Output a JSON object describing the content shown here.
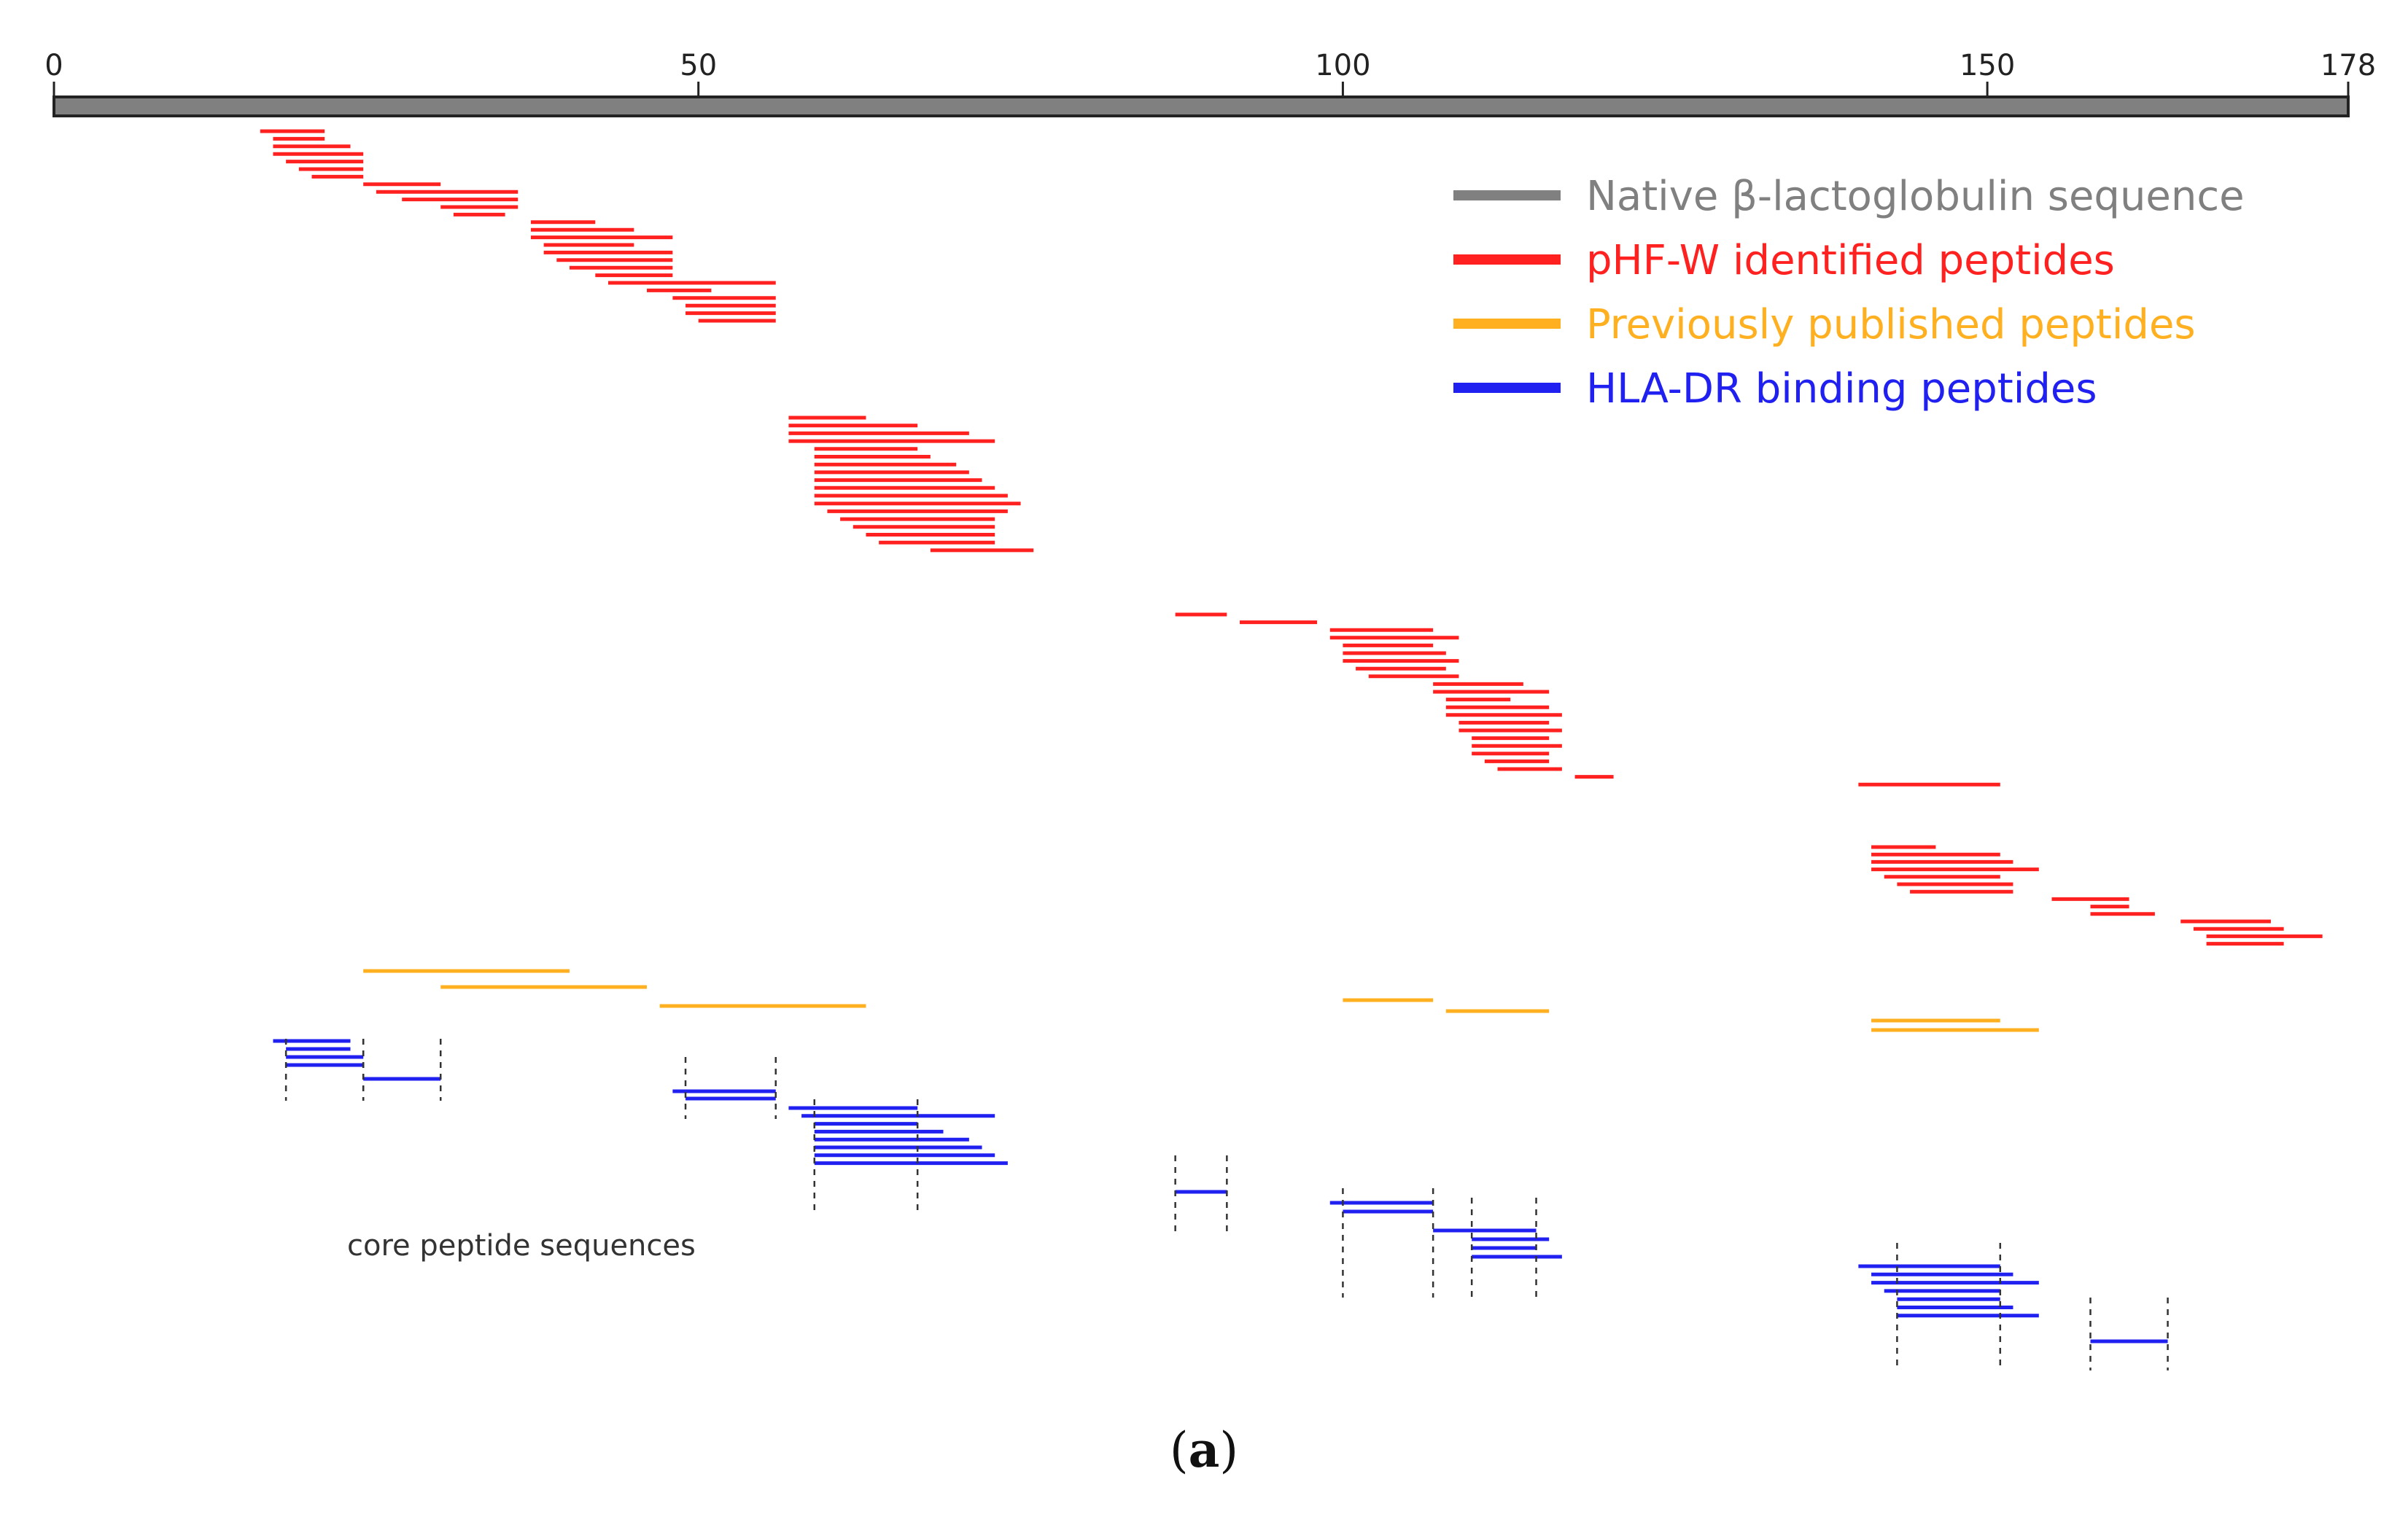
{
  "chart_data": {
    "type": "peptide_coverage_map",
    "title": "",
    "panel_label": {
      "open": "(",
      "letter": "a",
      "close": ")"
    },
    "sequence_length": 178,
    "x_range": [
      0,
      178
    ],
    "x_ticks": [
      0,
      50,
      100,
      150,
      178
    ],
    "note": "core peptide sequences",
    "colors": {
      "native": "#808080",
      "phf": "#ff2020",
      "published": "#ffb020",
      "hla": "#2020f0"
    },
    "legend": [
      {
        "label": "Native β-lactoglobulin sequence",
        "color": "#808080"
      },
      {
        "label": "pHF-W identified peptides",
        "color": "#ff2020"
      },
      {
        "label": "Previously published peptides",
        "color": "#ffb020"
      },
      {
        "label": "HLA-DR binding peptides",
        "color": "#2020f0"
      }
    ],
    "series": [
      {
        "name": "pHF-W identified peptides",
        "color": "#ff2020",
        "peptides": [
          [
            16,
            21
          ],
          [
            17,
            21
          ],
          [
            17,
            23
          ],
          [
            17,
            24
          ],
          [
            18,
            24
          ],
          [
            19,
            24
          ],
          [
            20,
            24
          ],
          [
            24,
            30
          ],
          [
            25,
            36
          ],
          [
            27,
            36
          ],
          [
            30,
            36
          ],
          [
            31,
            35
          ],
          [
            37,
            42
          ],
          [
            37,
            45
          ],
          [
            37,
            48
          ],
          [
            38,
            45
          ],
          [
            38,
            48
          ],
          [
            39,
            48
          ],
          [
            40,
            48
          ],
          [
            42,
            48
          ],
          [
            43,
            56
          ],
          [
            46,
            51
          ],
          [
            48,
            56
          ],
          [
            49,
            56
          ],
          [
            49,
            56
          ],
          [
            50,
            56
          ],
          [
            57,
            63
          ],
          [
            57,
            67
          ],
          [
            57,
            71
          ],
          [
            57,
            73
          ],
          [
            59,
            67
          ],
          [
            59,
            68
          ],
          [
            59,
            70
          ],
          [
            59,
            71
          ],
          [
            59,
            72
          ],
          [
            59,
            73
          ],
          [
            59,
            74
          ],
          [
            59,
            75
          ],
          [
            60,
            74
          ],
          [
            61,
            73
          ],
          [
            62,
            73
          ],
          [
            63,
            73
          ],
          [
            64,
            73
          ],
          [
            68,
            76
          ],
          [
            87,
            91
          ],
          [
            92,
            98
          ],
          [
            99,
            107
          ],
          [
            99,
            109
          ],
          [
            100,
            107
          ],
          [
            100,
            108
          ],
          [
            100,
            109
          ],
          [
            101,
            108
          ],
          [
            102,
            109
          ],
          [
            107,
            114
          ],
          [
            107,
            116
          ],
          [
            108,
            113
          ],
          [
            108,
            116
          ],
          [
            108,
            117
          ],
          [
            109,
            116
          ],
          [
            109,
            117
          ],
          [
            110,
            116
          ],
          [
            110,
            117
          ],
          [
            110,
            116
          ],
          [
            111,
            116
          ],
          [
            112,
            117
          ],
          [
            118,
            121
          ],
          [
            140,
            151
          ],
          [
            141,
            146
          ],
          [
            141,
            151
          ],
          [
            141,
            152
          ],
          [
            141,
            154
          ],
          [
            142,
            151
          ],
          [
            143,
            152
          ],
          [
            144,
            152
          ],
          [
            155,
            161
          ],
          [
            158,
            161
          ],
          [
            158,
            163
          ],
          [
            165,
            172
          ],
          [
            166,
            173
          ],
          [
            167,
            176
          ],
          [
            167,
            173
          ]
        ]
      },
      {
        "name": "Previously published peptides",
        "color": "#ffb020",
        "peptides": [
          [
            24,
            40
          ],
          [
            30,
            46
          ],
          [
            47,
            63
          ],
          [
            100,
            107
          ],
          [
            108,
            116
          ],
          [
            141,
            151
          ],
          [
            141,
            154
          ]
        ]
      },
      {
        "name": "HLA-DR binding peptides",
        "color": "#2020f0",
        "peptides": [
          [
            17,
            23
          ],
          [
            18,
            23
          ],
          [
            18,
            24
          ],
          [
            18,
            24
          ],
          [
            24,
            30
          ],
          [
            48,
            56
          ],
          [
            49,
            56
          ],
          [
            57,
            67
          ],
          [
            58,
            73
          ],
          [
            59,
            67
          ],
          [
            59,
            69
          ],
          [
            59,
            71
          ],
          [
            59,
            72
          ],
          [
            59,
            73
          ],
          [
            59,
            74
          ],
          [
            87,
            91
          ],
          [
            99,
            107
          ],
          [
            100,
            107
          ],
          [
            107,
            115
          ],
          [
            110,
            116
          ],
          [
            110,
            115
          ],
          [
            110,
            117
          ],
          [
            140,
            151
          ],
          [
            141,
            152
          ],
          [
            141,
            154
          ],
          [
            142,
            151
          ],
          [
            143,
            151
          ],
          [
            143,
            152
          ],
          [
            143,
            154
          ],
          [
            158,
            164
          ]
        ]
      }
    ],
    "core_markers": [
      {
        "positions": [
          18,
          24
        ],
        "y_from": 1425,
        "y_to": 1510
      },
      {
        "positions": [
          24,
          30
        ],
        "y_from": 1425,
        "y_to": 1510
      },
      {
        "positions": [
          49,
          56
        ],
        "y_from": 1450,
        "y_to": 1535
      },
      {
        "positions": [
          59,
          67
        ],
        "y_from": 1508,
        "y_to": 1660
      },
      {
        "positions": [
          87,
          91
        ],
        "y_from": 1585,
        "y_to": 1695
      },
      {
        "positions": [
          100,
          107
        ],
        "y_from": 1630,
        "y_to": 1780
      },
      {
        "positions": [
          110,
          115
        ],
        "y_from": 1643,
        "y_to": 1780
      },
      {
        "positions": [
          143,
          151
        ],
        "y_from": 1705,
        "y_to": 1875
      },
      {
        "positions": [
          158,
          164
        ],
        "y_from": 1780,
        "y_to": 1880
      }
    ]
  }
}
